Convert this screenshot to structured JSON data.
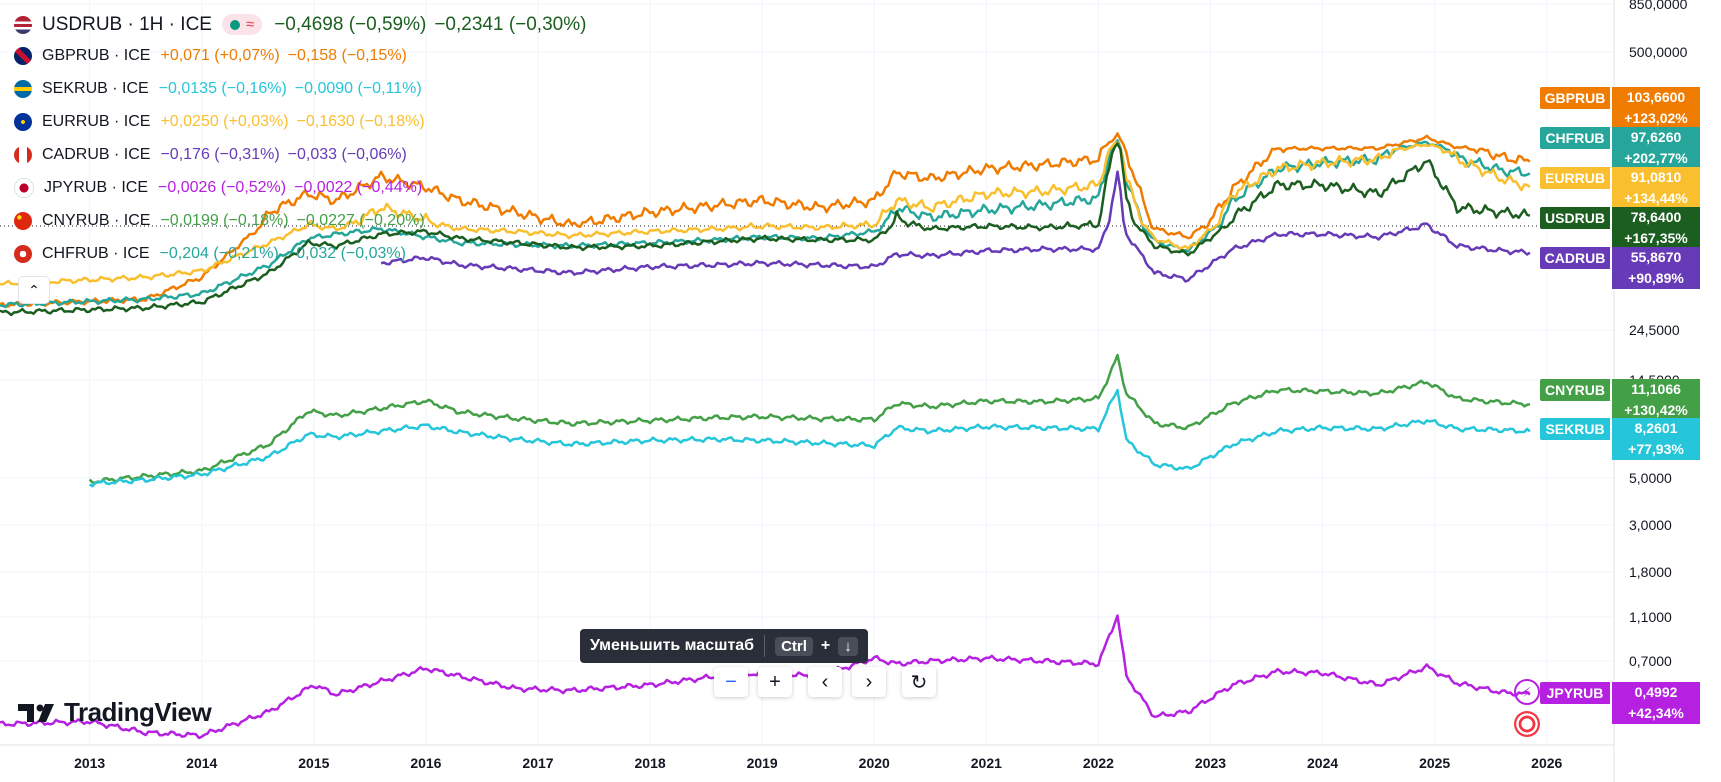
{
  "colors": {
    "USDRUB": "#1b5e20",
    "GBPRUB": "#ef7c00",
    "SEKRUB": "#26c6da",
    "EURRUB": "#f9bf2e",
    "CADRUB": "#673ab7",
    "JPYRUB": "#b620e0",
    "CNYRUB": "#43a047",
    "CHFRUB": "#26a69a"
  },
  "legend": {
    "main": {
      "label": "USDRUB · 1H · ICE",
      "pill_symbol": "≈",
      "chg1": "−0,4698 (−0,59%)",
      "chg2": "−0,2341 (−0,30%)"
    },
    "rows": [
      {
        "label": "GBPRUB · ICE",
        "chg1": "+0,071 (+0,07%)",
        "chg2": "−0,158 (−0,15%)",
        "key": "GBPRUB"
      },
      {
        "label": "SEKRUB · ICE",
        "chg1": "−0,0135 (−0,16%)",
        "chg2": "−0,0090 (−0,11%)",
        "key": "SEKRUB"
      },
      {
        "label": "EURRUB · ICE",
        "chg1": "+0,0250 (+0,03%)",
        "chg2": "−0,1630 (−0,18%)",
        "key": "EURRUB"
      },
      {
        "label": "CADRUB · ICE",
        "chg1": "−0,176 (−0,31%)",
        "chg2": "−0,033 (−0,06%)",
        "key": "CADRUB"
      },
      {
        "label": "JPYRUB · ICE",
        "chg1": "−0,0026 (−0,52%)",
        "chg2": "−0,0022 (−0,44%)",
        "key": "JPYRUB"
      },
      {
        "label": "CNYRUB · ICE",
        "chg1": "−0,0199 (−0,18%)",
        "chg2": "−0,0227 (−0,20%)",
        "key": "CNYRUB"
      },
      {
        "label": "CHFRUB · ICE",
        "chg1": "−0,204 (−0,21%)",
        "chg2": "−0,032 (−0,03%)",
        "key": "CHFRUB"
      }
    ]
  },
  "tooltip": {
    "text": "Уменьшить масштаб",
    "key1": "Ctrl",
    "plus": "+",
    "key2": "↓"
  },
  "zoom": {
    "minus": "−",
    "plus": "+",
    "left": "‹",
    "right": "›",
    "reset": "↻"
  },
  "logo": {
    "text": "TradingView"
  },
  "collapse": "⌃",
  "tags": [
    {
      "name": "GBPRUB",
      "value": "103,6600",
      "change": "+123,02%"
    },
    {
      "name": "CHFRUB",
      "value": "97,6260",
      "change": "+202,77%"
    },
    {
      "name": "EURRUB",
      "value": "91,0810",
      "change": "+134,44%"
    },
    {
      "name": "USDRUB",
      "value": "78,6400",
      "change": "+167,35%"
    },
    {
      "name": "CADRUB",
      "value": "55,8670",
      "change": "+90,89%"
    },
    {
      "name": "CNYRUB",
      "value": "11,1066",
      "change": "+130,42%"
    },
    {
      "name": "SEKRUB",
      "value": "8,2601",
      "change": "+77,93%"
    },
    {
      "name": "JPYRUB",
      "value": "0,4992",
      "change": "+42,34%"
    }
  ],
  "chart_data": {
    "type": "line",
    "title": "USDRUB · 1H · ICE",
    "y_scale": "log",
    "y_ticks": [
      "850,0000",
      "500,0000",
      "24,5000",
      "14,5000",
      "5,0000",
      "3,0000",
      "1,8000",
      "1,1000",
      "0,7000"
    ],
    "y_tick_values": [
      850,
      500,
      24.5,
      14.5,
      5,
      3,
      1.8,
      1.1,
      0.7
    ],
    "x_ticks": [
      "2013",
      "2014",
      "2015",
      "2016",
      "2017",
      "2018",
      "2019",
      "2020",
      "2021",
      "2022",
      "2023",
      "2024",
      "2025",
      "2026"
    ],
    "x_tick_values": [
      2013,
      2014,
      2015,
      2016,
      2017,
      2018,
      2019,
      2020,
      2021,
      2022,
      2023,
      2024,
      2025,
      2026
    ],
    "xlim": [
      2012.2,
      2026.6
    ],
    "series": [
      {
        "name": "GBPRUB",
        "x": [
          2012.2,
          2013.5,
          2014.0,
          2014.6,
          2014.95,
          2015.2,
          2015.6,
          2016.0,
          2016.3,
          2016.8,
          2017.3,
          2018.0,
          2018.6,
          2019.0,
          2019.5,
          2020.0,
          2020.2,
          2020.5,
          2021.0,
          2021.5,
          2022.0,
          2022.17,
          2022.25,
          2022.5,
          2022.8,
          2023.2,
          2023.6,
          2024.0,
          2024.5,
          2024.93,
          2025.2,
          2025.6,
          2025.85
        ],
        "values": [
          32,
          34,
          43,
          80,
          88,
          85,
          96,
          91,
          85,
          80,
          75,
          80,
          83,
          85,
          82,
          85,
          98,
          95,
          100,
          102,
          105,
          140,
          108,
          72,
          66,
          90,
          112,
          113,
          113,
          133,
          115,
          106,
          103.66
        ]
      },
      {
        "name": "CHFRUB",
        "x": [
          2012.2,
          2013.5,
          2014.0,
          2014.6,
          2014.95,
          2015.2,
          2015.6,
          2016.0,
          2016.3,
          2016.8,
          2017.3,
          2018.0,
          2018.6,
          2019.0,
          2019.5,
          2020.0,
          2020.2,
          2020.5,
          2021.0,
          2021.5,
          2022.0,
          2022.17,
          2022.25,
          2022.5,
          2022.8,
          2023.2,
          2023.6,
          2024.0,
          2024.5,
          2024.93,
          2025.2,
          2025.6,
          2025.85
        ],
        "values": [
          32,
          34,
          36,
          49,
          65,
          68,
          72,
          66,
          62,
          61,
          60,
          62,
          64,
          66,
          65,
          70,
          82,
          78,
          81,
          83,
          86,
          125,
          95,
          63,
          57,
          85,
          100,
          103,
          105,
          124,
          106,
          99,
          97.63
        ]
      },
      {
        "name": "EURRUB",
        "x": [
          2012.2,
          2013.5,
          2014.0,
          2014.6,
          2014.95,
          2015.2,
          2015.6,
          2016.0,
          2016.3,
          2016.8,
          2017.3,
          2018.0,
          2018.6,
          2019.0,
          2019.5,
          2020.0,
          2020.2,
          2020.5,
          2021.0,
          2021.5,
          2022.0,
          2022.17,
          2022.25,
          2022.5,
          2022.8,
          2023.2,
          2023.6,
          2024.0,
          2024.5,
          2024.93,
          2025.2,
          2025.6,
          2025.85
        ],
        "values": [
          40,
          43,
          46,
          62,
          75,
          72,
          82,
          77,
          72,
          70,
          67,
          70,
          72,
          74,
          73,
          75,
          85,
          82,
          88,
          89,
          92,
          125,
          95,
          65,
          58,
          88,
          100,
          103,
          105,
          120,
          105,
          95,
          91.08
        ]
      },
      {
        "name": "USDRUB",
        "x": [
          2012.2,
          2013.5,
          2014.0,
          2014.6,
          2014.95,
          2015.2,
          2015.6,
          2016.0,
          2016.3,
          2016.8,
          2017.3,
          2018.0,
          2018.6,
          2019.0,
          2019.5,
          2020.0,
          2020.2,
          2020.5,
          2021.0,
          2021.5,
          2022.0,
          2022.17,
          2022.25,
          2022.5,
          2022.8,
          2023.2,
          2023.6,
          2024.0,
          2024.5,
          2024.93,
          2025.2,
          2025.6,
          2025.85
        ],
        "values": [
          29.5,
          31,
          33,
          45,
          62,
          60,
          68,
          70,
          65,
          62,
          59,
          60,
          63,
          65,
          64,
          64,
          78,
          72,
          74,
          73,
          75,
          125,
          85,
          60,
          55,
          78,
          92,
          92,
          88,
          104,
          82,
          80,
          78.64
        ]
      },
      {
        "name": "CADRUB",
        "x": [
          2015.6,
          2016.0,
          2016.3,
          2016.8,
          2017.3,
          2018.0,
          2018.6,
          2019.0,
          2019.5,
          2020.0,
          2020.2,
          2020.5,
          2021.0,
          2021.5,
          2022.0,
          2022.17,
          2022.25,
          2022.5,
          2022.8,
          2023.2,
          2023.6,
          2024.0,
          2024.5,
          2024.93,
          2025.2,
          2025.6,
          2025.85
        ],
        "values": [
          50,
          53,
          49,
          47,
          45,
          48,
          49,
          50,
          49,
          48,
          55,
          54,
          57,
          58,
          58,
          98,
          68,
          45,
          42,
          58,
          68,
          68,
          66,
          75,
          60,
          57,
          55.87
        ]
      },
      {
        "name": "CNYRUB",
        "x": [
          2013.0,
          2013.5,
          2014.0,
          2014.6,
          2014.95,
          2015.2,
          2015.6,
          2016.0,
          2016.3,
          2016.8,
          2017.3,
          2018.0,
          2018.6,
          2019.0,
          2019.5,
          2020.0,
          2020.2,
          2020.5,
          2021.0,
          2021.5,
          2022.0,
          2022.17,
          2022.25,
          2022.5,
          2022.8,
          2023.2,
          2023.6,
          2024.0,
          2024.5,
          2024.93,
          2025.2,
          2025.6,
          2025.85
        ],
        "values": [
          4.8,
          5.1,
          5.4,
          7.2,
          10.3,
          9.8,
          10.6,
          11.5,
          10.2,
          9.5,
          9.0,
          9.3,
          9.6,
          9.7,
          9.5,
          9.4,
          11.2,
          10.8,
          11.5,
          11.4,
          11.8,
          18.5,
          12.5,
          9.0,
          8.6,
          11.2,
          13.0,
          12.8,
          12.5,
          14.2,
          11.8,
          11.3,
          11.11
        ]
      },
      {
        "name": "SEKRUB",
        "x": [
          2013.0,
          2013.5,
          2014.0,
          2014.6,
          2014.95,
          2015.2,
          2015.6,
          2016.0,
          2016.3,
          2016.8,
          2017.3,
          2018.0,
          2018.6,
          2019.0,
          2019.5,
          2020.0,
          2020.2,
          2020.5,
          2021.0,
          2021.5,
          2022.0,
          2022.17,
          2022.25,
          2022.5,
          2022.8,
          2023.2,
          2023.6,
          2024.0,
          2024.5,
          2024.93,
          2025.2,
          2025.6,
          2025.85
        ],
        "values": [
          4.7,
          4.9,
          5.2,
          6.3,
          8.0,
          7.8,
          8.3,
          8.8,
          8.2,
          7.6,
          7.2,
          7.5,
          7.6,
          7.5,
          7.3,
          7.1,
          8.6,
          8.3,
          8.7,
          8.6,
          8.5,
          13.0,
          7.5,
          5.8,
          5.5,
          7.2,
          8.3,
          8.6,
          8.5,
          9.3,
          8.5,
          8.4,
          8.26
        ]
      },
      {
        "name": "JPYRUB",
        "x": [
          2012.2,
          2013.0,
          2013.5,
          2014.0,
          2014.6,
          2015.0,
          2015.2,
          2015.6,
          2016.0,
          2016.3,
          2016.8,
          2017.3,
          2018.0,
          2018.6,
          2019.0,
          2019.5,
          2020.0,
          2020.2,
          2020.5,
          2021.0,
          2021.5,
          2022.0,
          2022.17,
          2022.25,
          2022.5,
          2022.8,
          2023.2,
          2023.6,
          2024.0,
          2024.5,
          2024.93,
          2025.2,
          2025.6,
          2025.85
        ],
        "values": [
          0.37,
          0.38,
          0.34,
          0.33,
          0.42,
          0.55,
          0.5,
          0.57,
          0.65,
          0.6,
          0.53,
          0.52,
          0.55,
          0.6,
          0.62,
          0.6,
          0.72,
          0.68,
          0.7,
          0.72,
          0.7,
          0.68,
          1.12,
          0.6,
          0.4,
          0.42,
          0.55,
          0.63,
          0.62,
          0.55,
          0.66,
          0.56,
          0.51,
          0.4992
        ]
      }
    ]
  }
}
